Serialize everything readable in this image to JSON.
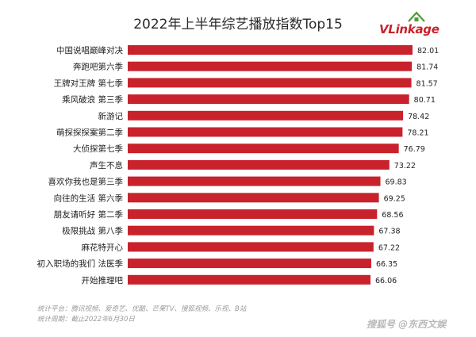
{
  "chart_data": {
    "type": "bar",
    "orientation": "horizontal",
    "title": "2022年上半年综艺播放指数Top15",
    "categories": [
      "中国说唱巅峰对决",
      "奔跑吧第六季",
      "王牌对王牌 第七季",
      "乘风破浪 第三季",
      "新游记",
      "萌探探探案第二季",
      "大侦探第七季",
      "声生不息",
      "喜欢你我也是第三季",
      "向往的生活 第六季",
      "朋友请听好 第二季",
      "极限挑战 第八季",
      "麻花特开心",
      "初入职场的我们 法医季",
      "开始推理吧"
    ],
    "values": [
      82.01,
      81.74,
      81.57,
      80.71,
      78.42,
      78.21,
      76.79,
      73.22,
      69.83,
      69.25,
      68.56,
      67.38,
      67.22,
      66.35,
      66.06
    ],
    "value_labels": [
      "82.01",
      "81.74",
      "81.57",
      "80.71",
      "78.42",
      "78.21",
      "76.79",
      "73.22",
      "69.83",
      "69.25",
      "68.56",
      "67.38",
      "67.22",
      "66.35",
      "66.06"
    ],
    "bar_color": "#c8232c",
    "grid": false,
    "legend": "none"
  },
  "logo": {
    "text": "VLinkage"
  },
  "footnotes": {
    "platforms": "统计平台：腾讯视频、爱奇艺、优酷、芒果TV、搜狐视频、乐视、B站",
    "period": "统计周期：截止2022年6月30日"
  },
  "watermark": "搜狐号 @东西文娱"
}
